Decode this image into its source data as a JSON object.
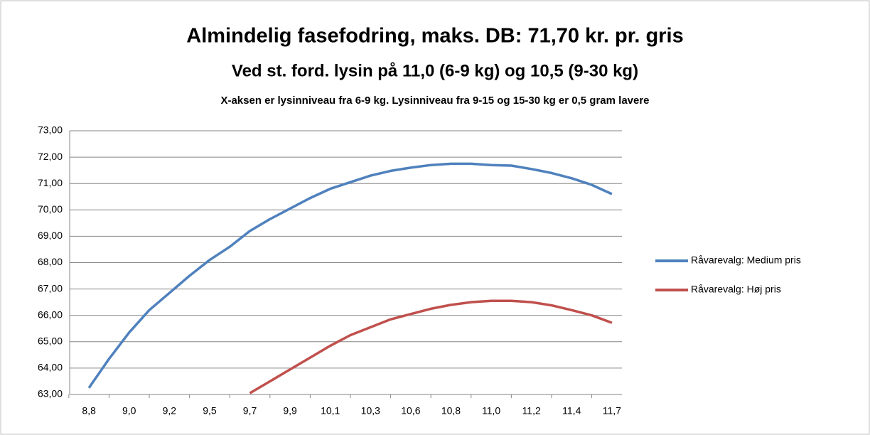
{
  "chart_data": {
    "type": "line",
    "title": "Almindelig fasefodring, maks. DB: 71,70 kr. pr. gris",
    "subtitle": "Ved st. ford. lysin på 11,0 (6-9 kg) og 10,5 (9-30 kg)",
    "note": "X-aksen er lysinniveau fra 6-9 kg. Lysinniveau fra 9-15 og 15-30 kg er 0,5 gram lavere",
    "categories": [
      "8,8",
      null,
      "9,0",
      null,
      "9,2",
      null,
      "9,5",
      null,
      "9,7",
      null,
      "9,9",
      null,
      "10,1",
      null,
      "10,3",
      null,
      "10,6",
      null,
      "10,8",
      null,
      "11,0",
      null,
      "11,2",
      null,
      "11,4",
      null,
      "11,7"
    ],
    "series": [
      {
        "name": "Råvarevalg: Medium pris",
        "color": "#4f81bd",
        "values": [
          63.25,
          64.35,
          65.35,
          66.2,
          66.85,
          67.5,
          68.1,
          68.6,
          69.2,
          69.65,
          70.05,
          70.45,
          70.8,
          71.05,
          71.3,
          71.48,
          71.6,
          71.7,
          71.75,
          71.75,
          71.7,
          71.68,
          71.55,
          71.4,
          71.2,
          70.95,
          70.6
        ]
      },
      {
        "name": "Råvarevalg: Høj pris",
        "color": "#c0504d",
        "values": [
          null,
          null,
          null,
          null,
          null,
          null,
          null,
          null,
          63.05,
          63.5,
          63.95,
          64.4,
          64.85,
          65.25,
          65.55,
          65.85,
          66.05,
          66.25,
          66.4,
          66.5,
          66.55,
          66.55,
          66.5,
          66.38,
          66.2,
          66.0,
          65.72
        ]
      }
    ],
    "ylim": [
      63,
      73
    ],
    "yticks": [
      {
        "value": 63,
        "label": "63,00"
      },
      {
        "value": 64,
        "label": "64,00"
      },
      {
        "value": 65,
        "label": "65,00"
      },
      {
        "value": 66,
        "label": "66,00"
      },
      {
        "value": 67,
        "label": "67,00"
      },
      {
        "value": 68,
        "label": "68,00"
      },
      {
        "value": 69,
        "label": "69,00"
      },
      {
        "value": 70,
        "label": "70,00"
      },
      {
        "value": 71,
        "label": "71,00"
      },
      {
        "value": 72,
        "label": "72,00"
      },
      {
        "value": 73,
        "label": "73,00"
      }
    ],
    "grid": true,
    "legend": "right"
  }
}
